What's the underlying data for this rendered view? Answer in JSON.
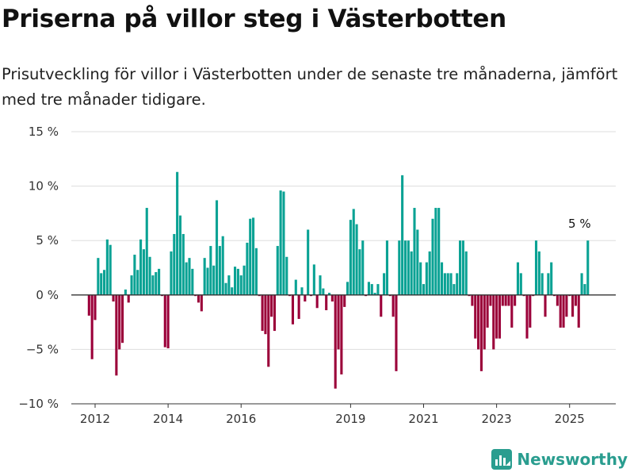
{
  "title": "Priserna på villor steg i Västerbotten",
  "subtitle": "Prisutveckling för villor i Västerbotten under de senaste tre månaderna, jämfört med tre månader tidigare.",
  "brand": {
    "name": "Newsworthy",
    "logo_icon": "newsworthy-logo-icon"
  },
  "colors": {
    "positive": "#0aa294",
    "negative": "#9b0039",
    "axis": "#333333",
    "grid": "#dddddd"
  },
  "chart_data": {
    "type": "bar",
    "title": "Priserna på villor steg i Västerbotten",
    "xlabel": "",
    "ylabel": "",
    "ylim": [
      -10,
      15
    ],
    "x_start": "2011-11",
    "interval": "month",
    "grid": "horizontal",
    "y_ticks": [
      {
        "value": -10,
        "label": "−10 %"
      },
      {
        "value": -5,
        "label": "−5 %"
      },
      {
        "value": 0,
        "label": "0 %"
      },
      {
        "value": 5,
        "label": "5 %"
      },
      {
        "value": 10,
        "label": "10 %"
      },
      {
        "value": 15,
        "label": "15 %"
      }
    ],
    "x_ticks": [
      {
        "date": "2012-01",
        "label": "2012"
      },
      {
        "date": "2014-01",
        "label": "2014"
      },
      {
        "date": "2016-01",
        "label": "2016"
      },
      {
        "date": "2019-01",
        "label": "2019"
      },
      {
        "date": "2021-01",
        "label": "2021"
      },
      {
        "date": "2023-01",
        "label": "2023"
      },
      {
        "date": "2025-01",
        "label": "2025"
      }
    ],
    "annotation": {
      "label": "5 %",
      "value": 5,
      "date": "2025-08"
    },
    "values": [
      -1.9,
      -5.9,
      -2.3,
      3.4,
      2.0,
      2.3,
      5.1,
      4.6,
      -0.6,
      -7.4,
      -5.0,
      -4.4,
      0.5,
      -0.7,
      1.8,
      3.7,
      2.3,
      5.1,
      4.2,
      8.0,
      3.5,
      1.8,
      2.1,
      2.4,
      -0.1,
      -4.8,
      -4.9,
      4.0,
      5.6,
      11.3,
      7.3,
      5.6,
      3.0,
      3.4,
      2.4,
      -0.1,
      -0.7,
      -1.5,
      3.4,
      2.5,
      4.5,
      2.7,
      8.7,
      4.5,
      5.4,
      1.1,
      1.8,
      0.7,
      2.6,
      2.4,
      1.8,
      2.7,
      4.8,
      7.0,
      7.1,
      4.3,
      -0.1,
      -3.3,
      -3.6,
      -6.6,
      -2.0,
      -3.3,
      4.5,
      9.6,
      9.5,
      3.5,
      -0.1,
      -2.7,
      1.4,
      -2.2,
      0.7,
      -0.6,
      6.0,
      -0.1,
      2.8,
      -1.2,
      1.8,
      0.6,
      -1.4,
      0.2,
      -0.6,
      -8.6,
      -5.0,
      -7.3,
      -1.1,
      1.2,
      6.9,
      7.9,
      6.5,
      4.2,
      5.0,
      -0.1,
      1.2,
      1.0,
      0.2,
      1.0,
      -2.0,
      2.0,
      5.0,
      -0.1,
      -2.0,
      -7.0,
      5.0,
      11.0,
      5.0,
      5.0,
      4.0,
      8.0,
      6.0,
      3.0,
      1.0,
      3.0,
      4.0,
      7.0,
      8.0,
      8.0,
      3.0,
      2.0,
      2.0,
      2.0,
      1.0,
      2.0,
      5.0,
      5.0,
      4.0,
      -0.1,
      -1.0,
      -4.0,
      -5.0,
      -7.0,
      -5.0,
      -3.0,
      -1.0,
      -5.0,
      -4.0,
      -4.0,
      -1.0,
      -1.0,
      -1.0,
      -3.0,
      -1.0,
      3.0,
      2.0,
      -0.1,
      -4.0,
      -3.0,
      -0.1,
      5.0,
      4.0,
      2.0,
      -2.0,
      2.0,
      3.0,
      -0.1,
      -1.0,
      -3.0,
      -3.0,
      -2.0,
      -0.1,
      -2.0,
      -1.0,
      -3.0,
      2.0,
      1.0,
      5.0
    ]
  }
}
